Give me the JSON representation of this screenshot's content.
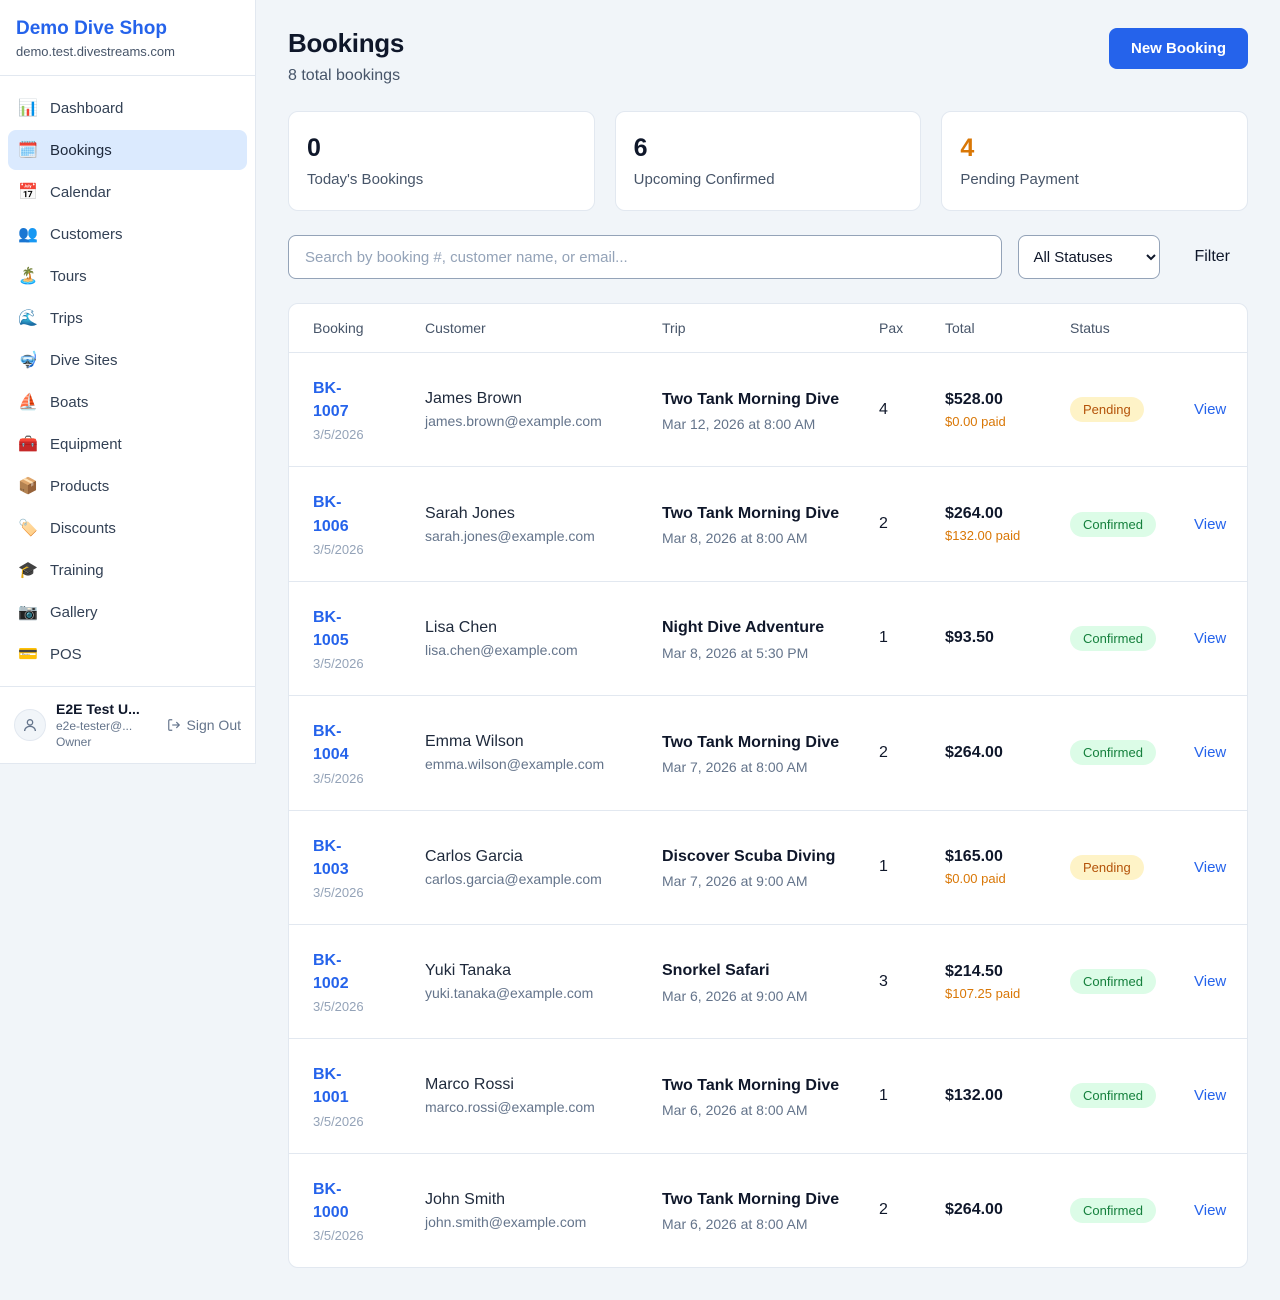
{
  "brand": {
    "name": "Demo Dive Shop",
    "domain": "demo.test.divestreams.com"
  },
  "sidebar": {
    "items": [
      {
        "label": "Dashboard",
        "icon": "📊",
        "active": false
      },
      {
        "label": "Bookings",
        "icon": "🗓️",
        "active": true
      },
      {
        "label": "Calendar",
        "icon": "📅",
        "active": false
      },
      {
        "label": "Customers",
        "icon": "👥",
        "active": false
      },
      {
        "label": "Tours",
        "icon": "🏝️",
        "active": false
      },
      {
        "label": "Trips",
        "icon": "🌊",
        "active": false
      },
      {
        "label": "Dive Sites",
        "icon": "🤿",
        "active": false
      },
      {
        "label": "Boats",
        "icon": "⛵",
        "active": false
      },
      {
        "label": "Equipment",
        "icon": "🧰",
        "active": false
      },
      {
        "label": "Products",
        "icon": "📦",
        "active": false
      },
      {
        "label": "Discounts",
        "icon": "🏷️",
        "active": false
      },
      {
        "label": "Training",
        "icon": "🎓",
        "active": false
      },
      {
        "label": "Gallery",
        "icon": "📷",
        "active": false
      },
      {
        "label": "POS",
        "icon": "💳",
        "active": false
      }
    ]
  },
  "user": {
    "name": "E2E Test U...",
    "email": "e2e-tester@...",
    "role": "Owner",
    "sign_out": "Sign Out"
  },
  "header": {
    "title": "Bookings",
    "subtitle": "8 total bookings",
    "new_booking": "New Booking"
  },
  "stats": [
    {
      "value": "0",
      "label": "Today's Bookings",
      "accent": "#0f172a"
    },
    {
      "value": "6",
      "label": "Upcoming Confirmed",
      "accent": "#0f172a"
    },
    {
      "value": "4",
      "label": "Pending Payment",
      "accent": "#d97706"
    }
  ],
  "filters": {
    "search_placeholder": "Search by booking #, customer name, or email...",
    "status_selected": "All Statuses",
    "filter_label": "Filter"
  },
  "table": {
    "columns": [
      "Booking",
      "Customer",
      "Trip",
      "Pax",
      "Total",
      "Status"
    ],
    "view_label": "View",
    "rows": [
      {
        "booking_id": "BK-1007",
        "date": "3/5/2026",
        "customer": "James Brown",
        "email": "james.brown@example.com",
        "trip": "Two Tank Morning Dive",
        "trip_time": "Mar 12, 2026 at 8:00 AM",
        "pax": "4",
        "total": "$528.00",
        "paid": "$0.00 paid",
        "status": "Pending"
      },
      {
        "booking_id": "BK-1006",
        "date": "3/5/2026",
        "customer": "Sarah Jones",
        "email": "sarah.jones@example.com",
        "trip": "Two Tank Morning Dive",
        "trip_time": "Mar 8, 2026 at 8:00 AM",
        "pax": "2",
        "total": "$264.00",
        "paid": "$132.00 paid",
        "status": "Confirmed"
      },
      {
        "booking_id": "BK-1005",
        "date": "3/5/2026",
        "customer": "Lisa Chen",
        "email": "lisa.chen@example.com",
        "trip": "Night Dive Adventure",
        "trip_time": "Mar 8, 2026 at 5:30 PM",
        "pax": "1",
        "total": "$93.50",
        "paid": null,
        "status": "Confirmed"
      },
      {
        "booking_id": "BK-1004",
        "date": "3/5/2026",
        "customer": "Emma Wilson",
        "email": "emma.wilson@example.com",
        "trip": "Two Tank Morning Dive",
        "trip_time": "Mar 7, 2026 at 8:00 AM",
        "pax": "2",
        "total": "$264.00",
        "paid": null,
        "status": "Confirmed"
      },
      {
        "booking_id": "BK-1003",
        "date": "3/5/2026",
        "customer": "Carlos Garcia",
        "email": "carlos.garcia@example.com",
        "trip": "Discover Scuba Diving",
        "trip_time": "Mar 7, 2026 at 9:00 AM",
        "pax": "1",
        "total": "$165.00",
        "paid": "$0.00 paid",
        "status": "Pending"
      },
      {
        "booking_id": "BK-1002",
        "date": "3/5/2026",
        "customer": "Yuki Tanaka",
        "email": "yuki.tanaka@example.com",
        "trip": "Snorkel Safari",
        "trip_time": "Mar 6, 2026 at 9:00 AM",
        "pax": "3",
        "total": "$214.50",
        "paid": "$107.25 paid",
        "status": "Confirmed"
      },
      {
        "booking_id": "BK-1001",
        "date": "3/5/2026",
        "customer": "Marco Rossi",
        "email": "marco.rossi@example.com",
        "trip": "Two Tank Morning Dive",
        "trip_time": "Mar 6, 2026 at 8:00 AM",
        "pax": "1",
        "total": "$132.00",
        "paid": null,
        "status": "Confirmed"
      },
      {
        "booking_id": "BK-1000",
        "date": "3/5/2026",
        "customer": "John Smith",
        "email": "john.smith@example.com",
        "trip": "Two Tank Morning Dive",
        "trip_time": "Mar 6, 2026 at 8:00 AM",
        "pax": "2",
        "total": "$264.00",
        "paid": null,
        "status": "Confirmed"
      }
    ]
  },
  "colors": {
    "brand_blue": "#2563eb",
    "pending_bg": "#fef3c7",
    "pending_text": "#b45309",
    "confirmed_bg": "#dcfce7",
    "confirmed_text": "#15803d",
    "paid_amount": "#d97706",
    "page_bg": "#f1f5f9"
  }
}
